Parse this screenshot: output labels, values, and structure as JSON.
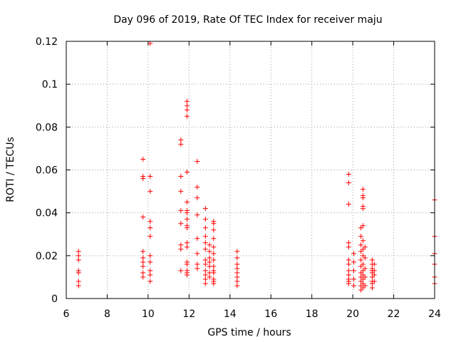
{
  "chart_data": {
    "type": "scatter",
    "title": "Day 096 of 2019, Rate Of TEC Index for receiver maju",
    "xlabel": "GPS time / hours",
    "ylabel": "ROTI / TECUs",
    "xlim": [
      6,
      24
    ],
    "ylim": [
      0,
      0.12
    ],
    "xticks": [
      6,
      8,
      10,
      12,
      14,
      16,
      18,
      20,
      22,
      24
    ],
    "xtick_labels": [
      "6",
      "8",
      "10",
      "12",
      "14",
      "16",
      "18",
      "20",
      "22",
      "24"
    ],
    "yticks": [
      0,
      0.02,
      0.04,
      0.06,
      0.08,
      0.1,
      0.12
    ],
    "ytick_labels": [
      "0",
      "0.02",
      "0.04",
      "0.06",
      "0.08",
      "0.1",
      "0.12"
    ],
    "grid": true,
    "marker": "+",
    "color": "#ff0000",
    "series": [
      {
        "name": "ROTI",
        "points": [
          [
            6.6,
            0.022
          ],
          [
            6.6,
            0.02
          ],
          [
            6.6,
            0.018
          ],
          [
            6.6,
            0.013
          ],
          [
            6.6,
            0.012
          ],
          [
            6.6,
            0.008
          ],
          [
            6.6,
            0.006
          ],
          [
            9.75,
            0.065
          ],
          [
            9.75,
            0.057
          ],
          [
            9.75,
            0.056
          ],
          [
            9.75,
            0.038
          ],
          [
            9.75,
            0.022
          ],
          [
            9.75,
            0.019
          ],
          [
            9.75,
            0.017
          ],
          [
            9.75,
            0.015
          ],
          [
            9.75,
            0.012
          ],
          [
            9.75,
            0.01
          ],
          [
            10.1,
            0.119
          ],
          [
            10.1,
            0.057
          ],
          [
            10.1,
            0.05
          ],
          [
            10.1,
            0.036
          ],
          [
            10.1,
            0.033
          ],
          [
            10.1,
            0.029
          ],
          [
            10.1,
            0.02
          ],
          [
            10.1,
            0.017
          ],
          [
            10.1,
            0.013
          ],
          [
            10.1,
            0.011
          ],
          [
            10.1,
            0.008
          ],
          [
            11.6,
            0.074
          ],
          [
            11.6,
            0.072
          ],
          [
            11.6,
            0.057
          ],
          [
            11.6,
            0.05
          ],
          [
            11.6,
            0.041
          ],
          [
            11.6,
            0.035
          ],
          [
            11.6,
            0.025
          ],
          [
            11.6,
            0.023
          ],
          [
            11.6,
            0.013
          ],
          [
            11.9,
            0.092
          ],
          [
            11.9,
            0.09
          ],
          [
            11.9,
            0.088
          ],
          [
            11.9,
            0.085
          ],
          [
            11.9,
            0.059
          ],
          [
            11.9,
            0.045
          ],
          [
            11.9,
            0.041
          ],
          [
            11.9,
            0.04
          ],
          [
            11.9,
            0.037
          ],
          [
            11.9,
            0.034
          ],
          [
            11.9,
            0.033
          ],
          [
            11.9,
            0.026
          ],
          [
            11.9,
            0.024
          ],
          [
            11.9,
            0.017
          ],
          [
            11.9,
            0.016
          ],
          [
            11.9,
            0.013
          ],
          [
            11.9,
            0.012
          ],
          [
            11.9,
            0.011
          ],
          [
            12.4,
            0.064
          ],
          [
            12.4,
            0.052
          ],
          [
            12.4,
            0.047
          ],
          [
            12.4,
            0.039
          ],
          [
            12.4,
            0.028
          ],
          [
            12.4,
            0.021
          ],
          [
            12.4,
            0.016
          ],
          [
            12.4,
            0.014
          ],
          [
            12.8,
            0.042
          ],
          [
            12.8,
            0.037
          ],
          [
            12.8,
            0.033
          ],
          [
            12.8,
            0.029
          ],
          [
            12.8,
            0.026
          ],
          [
            12.8,
            0.023
          ],
          [
            12.8,
            0.018
          ],
          [
            12.8,
            0.016
          ],
          [
            12.8,
            0.013
          ],
          [
            12.8,
            0.011
          ],
          [
            12.8,
            0.009
          ],
          [
            12.8,
            0.007
          ],
          [
            13.0,
            0.025
          ],
          [
            13.0,
            0.022
          ],
          [
            13.0,
            0.019
          ],
          [
            13.0,
            0.017
          ],
          [
            13.0,
            0.015
          ],
          [
            13.0,
            0.012
          ],
          [
            13.0,
            0.01
          ],
          [
            13.2,
            0.036
          ],
          [
            13.2,
            0.035
          ],
          [
            13.2,
            0.032
          ],
          [
            13.2,
            0.028
          ],
          [
            13.2,
            0.024
          ],
          [
            13.2,
            0.021
          ],
          [
            13.2,
            0.018
          ],
          [
            13.2,
            0.015
          ],
          [
            13.2,
            0.013
          ],
          [
            13.2,
            0.012
          ],
          [
            13.2,
            0.009
          ],
          [
            13.2,
            0.008
          ],
          [
            13.2,
            0.007
          ],
          [
            14.35,
            0.022
          ],
          [
            14.35,
            0.019
          ],
          [
            14.35,
            0.016
          ],
          [
            14.35,
            0.014
          ],
          [
            14.35,
            0.012
          ],
          [
            14.35,
            0.01
          ],
          [
            14.35,
            0.008
          ],
          [
            14.35,
            0.006
          ],
          [
            19.8,
            0.058
          ],
          [
            19.8,
            0.054
          ],
          [
            19.8,
            0.044
          ],
          [
            19.8,
            0.026
          ],
          [
            19.8,
            0.024
          ],
          [
            19.8,
            0.018
          ],
          [
            19.8,
            0.016
          ],
          [
            19.8,
            0.013
          ],
          [
            19.8,
            0.011
          ],
          [
            19.8,
            0.009
          ],
          [
            19.8,
            0.008
          ],
          [
            19.8,
            0.007
          ],
          [
            20.05,
            0.021
          ],
          [
            20.05,
            0.017
          ],
          [
            20.05,
            0.013
          ],
          [
            20.05,
            0.009
          ],
          [
            20.05,
            0.006
          ],
          [
            20.4,
            0.033
          ],
          [
            20.4,
            0.029
          ],
          [
            20.4,
            0.025
          ],
          [
            20.4,
            0.022
          ],
          [
            20.4,
            0.018
          ],
          [
            20.4,
            0.015
          ],
          [
            20.4,
            0.012
          ],
          [
            20.4,
            0.01
          ],
          [
            20.4,
            0.008
          ],
          [
            20.4,
            0.006
          ],
          [
            20.4,
            0.004
          ],
          [
            20.5,
            0.051
          ],
          [
            20.5,
            0.048
          ],
          [
            20.5,
            0.047
          ],
          [
            20.5,
            0.043
          ],
          [
            20.5,
            0.042
          ],
          [
            20.5,
            0.034
          ],
          [
            20.5,
            0.027
          ],
          [
            20.5,
            0.023
          ],
          [
            20.5,
            0.02
          ],
          [
            20.5,
            0.016
          ],
          [
            20.5,
            0.013
          ],
          [
            20.5,
            0.011
          ],
          [
            20.5,
            0.009
          ],
          [
            20.5,
            0.007
          ],
          [
            20.5,
            0.005
          ],
          [
            20.6,
            0.024
          ],
          [
            20.6,
            0.019
          ],
          [
            20.6,
            0.014
          ],
          [
            20.6,
            0.01
          ],
          [
            20.6,
            0.006
          ],
          [
            20.95,
            0.018
          ],
          [
            20.95,
            0.016
          ],
          [
            20.95,
            0.014
          ],
          [
            20.95,
            0.013
          ],
          [
            20.95,
            0.012
          ],
          [
            20.95,
            0.01
          ],
          [
            20.95,
            0.008
          ],
          [
            20.95,
            0.007
          ],
          [
            20.95,
            0.005
          ],
          [
            21.05,
            0.016
          ],
          [
            21.05,
            0.013
          ],
          [
            21.05,
            0.011
          ],
          [
            21.05,
            0.008
          ],
          [
            24.0,
            0.046
          ],
          [
            24.0,
            0.029
          ],
          [
            24.0,
            0.021
          ],
          [
            24.0,
            0.016
          ],
          [
            24.0,
            0.01
          ],
          [
            24.0,
            0.007
          ]
        ]
      }
    ]
  }
}
